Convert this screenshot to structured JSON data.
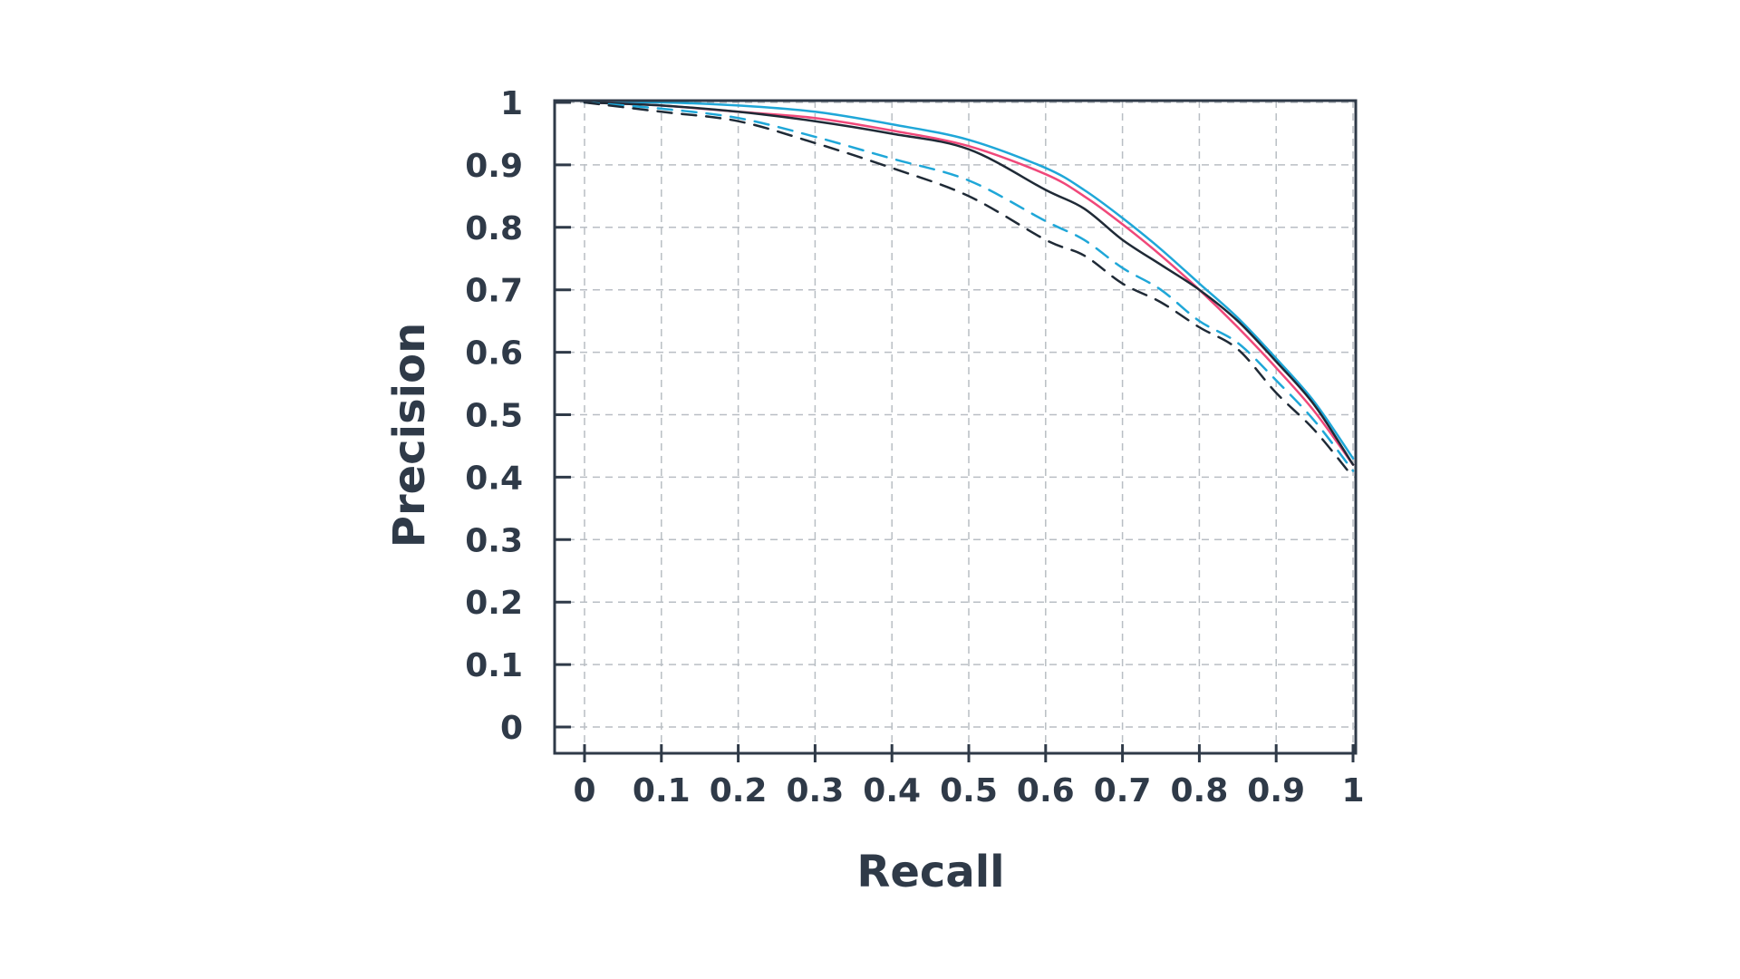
{
  "chart_data": {
    "type": "line",
    "title": "",
    "xlabel": "Recall",
    "ylabel": "Precision",
    "xlim": [
      0,
      1
    ],
    "ylim": [
      0,
      1
    ],
    "x_ticks": [
      "0",
      "0.1",
      "0.2",
      "0.3",
      "0.4",
      "0.5",
      "0.6",
      "0.7",
      "0.8",
      "0.9",
      "1"
    ],
    "y_ticks": [
      "0",
      "0.1",
      "0.2",
      "0.3",
      "0.4",
      "0.5",
      "0.6",
      "0.7",
      "0.8",
      "0.9",
      "1"
    ],
    "grid": true,
    "legend": "none",
    "series": [
      {
        "color": "#1fa7d8",
        "dash": "solid",
        "x": [
          0.0,
          0.1,
          0.2,
          0.3,
          0.4,
          0.5,
          0.6,
          0.65,
          0.7,
          0.75,
          0.8,
          0.85,
          0.9,
          0.95,
          1.0
        ],
        "y": [
          1.0,
          1.0,
          0.995,
          0.985,
          0.965,
          0.94,
          0.895,
          0.86,
          0.815,
          0.765,
          0.71,
          0.655,
          0.59,
          0.52,
          0.43
        ]
      },
      {
        "color": "#f0487a",
        "dash": "solid",
        "x": [
          0.0,
          0.1,
          0.2,
          0.3,
          0.4,
          0.5,
          0.6,
          0.65,
          0.7,
          0.75,
          0.8,
          0.85,
          0.9,
          0.95,
          1.0
        ],
        "y": [
          1.0,
          0.995,
          0.985,
          0.975,
          0.955,
          0.93,
          0.885,
          0.85,
          0.805,
          0.755,
          0.7,
          0.64,
          0.575,
          0.505,
          0.42
        ]
      },
      {
        "color": "#1f2a36",
        "dash": "solid",
        "x": [
          0.0,
          0.1,
          0.2,
          0.3,
          0.4,
          0.5,
          0.6,
          0.65,
          0.7,
          0.75,
          0.8,
          0.85,
          0.9,
          0.95,
          1.0
        ],
        "y": [
          1.0,
          0.995,
          0.985,
          0.97,
          0.95,
          0.925,
          0.86,
          0.83,
          0.78,
          0.74,
          0.7,
          0.65,
          0.585,
          0.515,
          0.42
        ]
      },
      {
        "color": "#1fa7d8",
        "dash": "dashed",
        "x": [
          0.0,
          0.1,
          0.2,
          0.3,
          0.4,
          0.5,
          0.6,
          0.65,
          0.7,
          0.75,
          0.8,
          0.85,
          0.9,
          0.95,
          1.0
        ],
        "y": [
          1.0,
          0.99,
          0.975,
          0.945,
          0.91,
          0.875,
          0.81,
          0.78,
          0.735,
          0.7,
          0.65,
          0.615,
          0.555,
          0.49,
          0.41
        ]
      },
      {
        "color": "#1f2a36",
        "dash": "dashed",
        "x": [
          0.0,
          0.1,
          0.2,
          0.3,
          0.4,
          0.5,
          0.6,
          0.65,
          0.7,
          0.75,
          0.8,
          0.85,
          0.9,
          0.95,
          1.0
        ],
        "y": [
          1.0,
          0.985,
          0.97,
          0.935,
          0.895,
          0.85,
          0.78,
          0.755,
          0.71,
          0.68,
          0.64,
          0.605,
          0.535,
          0.475,
          0.4
        ]
      }
    ]
  }
}
